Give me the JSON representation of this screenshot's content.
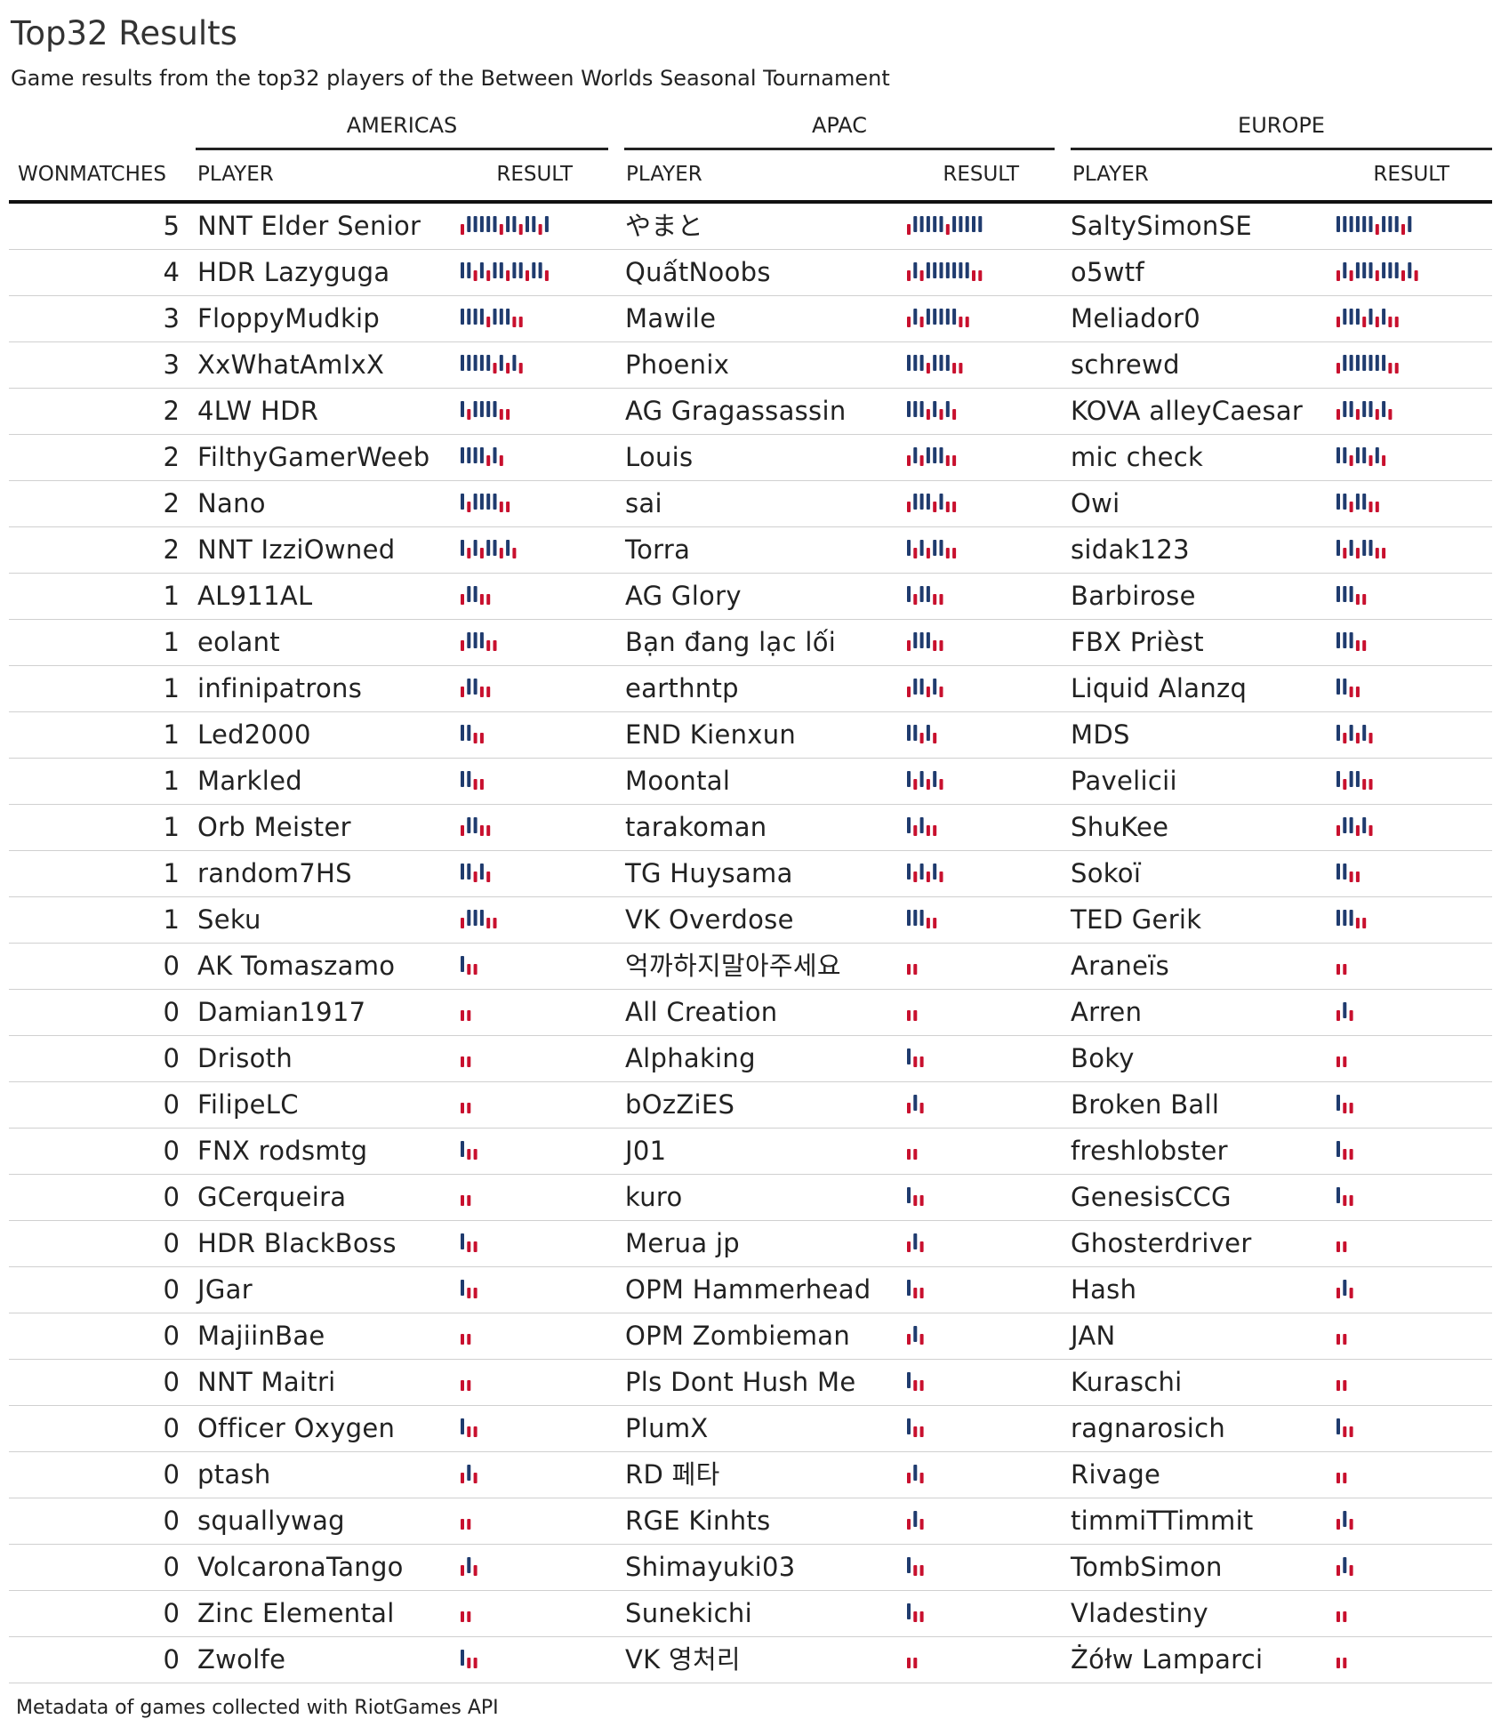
{
  "title": "Top32 Results",
  "subtitle": "Game results from the top32 players of the Between Worlds Seasonal Tournament",
  "footer": "Metadata of games collected with RiotGames API",
  "regions": [
    "AMERICAS",
    "APAC",
    "EUROPE"
  ],
  "columns": {
    "won": "WONMATCHES",
    "player": "PLAYER",
    "result": "RESULT"
  },
  "colors": {
    "win": "#1f3b6e",
    "loss": "#c8102e",
    "text": "#222222",
    "rule": "#d0d0d0"
  },
  "chart_data": {
    "type": "table",
    "title": "Top32 Results",
    "encoding": "W = game won (tall navy bar), L = game lost (short red bar)",
    "rows": [
      {
        "won": "5",
        "americas": {
          "player": "NNT Elder Senior",
          "result": "LWWWWWLWWLWWLW"
        },
        "apac": {
          "player": "やまと",
          "result": "LWWWWWLWWWWW"
        },
        "europe": {
          "player": "SaltySimonSE",
          "result": "WWWWWWLWWWLW"
        }
      },
      {
        "won": "4",
        "americas": {
          "player": "HDR Lazyguga",
          "result": "WWLWLWWLWWLWWL"
        },
        "apac": {
          "player": "QuấtNoobs",
          "result": "LWLWWWWWWWLL"
        },
        "europe": {
          "player": "o5wtf",
          "result": "LWLWWWLWWWLWL"
        }
      },
      {
        "won": "3",
        "americas": {
          "player": "FloppyMudkip",
          "result": "WWWWLWWWLL"
        },
        "apac": {
          "player": "Mawile",
          "result": "LWLWWWWWLL"
        },
        "europe": {
          "player": "Meliador0",
          "result": "LWWWLWLWLL"
        }
      },
      {
        "won": "3",
        "americas": {
          "player": "XxWhatAmIxX",
          "result": "WWWWWLWLWL"
        },
        "apac": {
          "player": "Phoenix",
          "result": "WWWLWWWLL"
        },
        "europe": {
          "player": "schrewd",
          "result": "LWWWWWWWLL"
        }
      },
      {
        "won": "2",
        "americas": {
          "player": "4LW HDR",
          "result": "WLWWWWLL"
        },
        "apac": {
          "player": "AG Gragassassin",
          "result": "WWWLWLWL"
        },
        "europe": {
          "player": "KOVA alleyCaesar",
          "result": "LWWLWWLWL"
        }
      },
      {
        "won": "2",
        "americas": {
          "player": "FilthyGamerWeeb",
          "result": "WWWWLWL"
        },
        "apac": {
          "player": "Louis",
          "result": "LWLWWWLL"
        },
        "europe": {
          "player": "mic check",
          "result": "WWLWWLWL"
        }
      },
      {
        "won": "2",
        "americas": {
          "player": "Nano",
          "result": "WLWWWWLL"
        },
        "apac": {
          "player": "sai",
          "result": "LWWWLWLL"
        },
        "europe": {
          "player": "Owi",
          "result": "WWLWWLL"
        }
      },
      {
        "won": "2",
        "americas": {
          "player": "NNT IzziOwned",
          "result": "WLWLWWLWL"
        },
        "apac": {
          "player": "Torra",
          "result": "WLWLWWLL"
        },
        "europe": {
          "player": "sidak123",
          "result": "WLWLWWLL"
        }
      },
      {
        "won": "1",
        "americas": {
          "player": "AL911AL",
          "result": "LWWLL"
        },
        "apac": {
          "player": "AG Glory",
          "result": "WLWWLL"
        },
        "europe": {
          "player": "Barbirose",
          "result": "WWWLL"
        }
      },
      {
        "won": "1",
        "americas": {
          "player": "eolant",
          "result": "LWWWLL"
        },
        "apac": {
          "player": "Bạn đang lạc lối",
          "result": "LWWWLL"
        },
        "europe": {
          "player": "FBX Prièst",
          "result": "WWWLL"
        }
      },
      {
        "won": "1",
        "americas": {
          "player": "infinipatrons",
          "result": "LWWLL"
        },
        "apac": {
          "player": "earthntp",
          "result": "LWWLWL"
        },
        "europe": {
          "player": "Liquid Alanzq",
          "result": "WWLL"
        }
      },
      {
        "won": "1",
        "americas": {
          "player": "Led2000",
          "result": "WWLL"
        },
        "apac": {
          "player": "END Kienxun",
          "result": "WWLWL"
        },
        "europe": {
          "player": "MDS",
          "result": "WLWLWL"
        }
      },
      {
        "won": "1",
        "americas": {
          "player": "Markled",
          "result": "WWLL"
        },
        "apac": {
          "player": "Moontal",
          "result": "WLWLWL"
        },
        "europe": {
          "player": "Pavelicii",
          "result": "WLWWLL"
        }
      },
      {
        "won": "1",
        "americas": {
          "player": "Orb Meister",
          "result": "LWWLL"
        },
        "apac": {
          "player": "tarakoman",
          "result": "WLWLL"
        },
        "europe": {
          "player": "ShuKee",
          "result": "LWWLWL"
        }
      },
      {
        "won": "1",
        "americas": {
          "player": "random7HS",
          "result": "WWLWL"
        },
        "apac": {
          "player": "TG Huysama",
          "result": "WLWLWL"
        },
        "europe": {
          "player": "Sokoï",
          "result": "WWLL"
        }
      },
      {
        "won": "1",
        "americas": {
          "player": "Seku",
          "result": "LWWWLL"
        },
        "apac": {
          "player": "VK Overdose",
          "result": "WWWLL"
        },
        "europe": {
          "player": "TED Gerik",
          "result": "WWWLL"
        }
      },
      {
        "won": "0",
        "americas": {
          "player": "AK Tomaszamo",
          "result": "WLL"
        },
        "apac": {
          "player": "억까하지말아주세요",
          "result": "LL"
        },
        "europe": {
          "player": "Araneïs",
          "result": "LL"
        }
      },
      {
        "won": "0",
        "americas": {
          "player": "Damian1917",
          "result": "LL"
        },
        "apac": {
          "player": "All Creation",
          "result": "LL"
        },
        "europe": {
          "player": "Arren",
          "result": "LWL"
        }
      },
      {
        "won": "0",
        "americas": {
          "player": "Drisoth",
          "result": "LL"
        },
        "apac": {
          "player": "Alphaking",
          "result": "WLL"
        },
        "europe": {
          "player": "Boky",
          "result": "LL"
        }
      },
      {
        "won": "0",
        "americas": {
          "player": "FilipeLC",
          "result": "LL"
        },
        "apac": {
          "player": "bOzZiES",
          "result": "LWL"
        },
        "europe": {
          "player": "Broken Ball",
          "result": "WLL"
        }
      },
      {
        "won": "0",
        "americas": {
          "player": "FNX rodsmtg",
          "result": "WLL"
        },
        "apac": {
          "player": "J01",
          "result": "LL"
        },
        "europe": {
          "player": "freshlobster",
          "result": "WLL"
        }
      },
      {
        "won": "0",
        "americas": {
          "player": "GCerqueira",
          "result": "LL"
        },
        "apac": {
          "player": "kuro",
          "result": "WLL"
        },
        "europe": {
          "player": "GenesisCCG",
          "result": "WLL"
        }
      },
      {
        "won": "0",
        "americas": {
          "player": "HDR BlackBoss",
          "result": "WLL"
        },
        "apac": {
          "player": "Merua jp",
          "result": "LWL"
        },
        "europe": {
          "player": "Ghosterdriver",
          "result": "LL"
        }
      },
      {
        "won": "0",
        "americas": {
          "player": "JGar",
          "result": "WLL"
        },
        "apac": {
          "player": "OPM Hammerhead",
          "result": "WLL"
        },
        "europe": {
          "player": "Hash",
          "result": "LWL"
        }
      },
      {
        "won": "0",
        "americas": {
          "player": "MajiinBae",
          "result": "LL"
        },
        "apac": {
          "player": "OPM Zombieman",
          "result": "LWL"
        },
        "europe": {
          "player": "JAN",
          "result": "LL"
        }
      },
      {
        "won": "0",
        "americas": {
          "player": "NNT Maitri",
          "result": "LL"
        },
        "apac": {
          "player": "Pls Dont Hush Me",
          "result": "WLL"
        },
        "europe": {
          "player": "Kuraschi",
          "result": "LL"
        }
      },
      {
        "won": "0",
        "americas": {
          "player": "Officer Oxygen",
          "result": "WLL"
        },
        "apac": {
          "player": "PlumX",
          "result": "WLL"
        },
        "europe": {
          "player": "ragnarosich",
          "result": "WLL"
        }
      },
      {
        "won": "0",
        "americas": {
          "player": "ptash",
          "result": "LWL"
        },
        "apac": {
          "player": "RD 페타",
          "result": "LWL"
        },
        "europe": {
          "player": "Rivage",
          "result": "LL"
        }
      },
      {
        "won": "0",
        "americas": {
          "player": "squallywag",
          "result": "LL"
        },
        "apac": {
          "player": "RGE Kinhts",
          "result": "LWL"
        },
        "europe": {
          "player": "timmiTTimmit",
          "result": "LWL"
        }
      },
      {
        "won": "0",
        "americas": {
          "player": "VolcaronaTango",
          "result": "LWL"
        },
        "apac": {
          "player": "Shimayuki03",
          "result": "WLL"
        },
        "europe": {
          "player": "TombSimon",
          "result": "LWL"
        }
      },
      {
        "won": "0",
        "americas": {
          "player": "Zinc Elemental",
          "result": "LL"
        },
        "apac": {
          "player": "Sunekichi",
          "result": "WLL"
        },
        "europe": {
          "player": "Vladestiny",
          "result": "LL"
        }
      },
      {
        "won": "0",
        "americas": {
          "player": "Zwolfe",
          "result": "WLL"
        },
        "apac": {
          "player": "VK 영처리",
          "result": "LL"
        },
        "europe": {
          "player": "Żółw Lamparci",
          "result": "LL"
        }
      }
    ]
  }
}
